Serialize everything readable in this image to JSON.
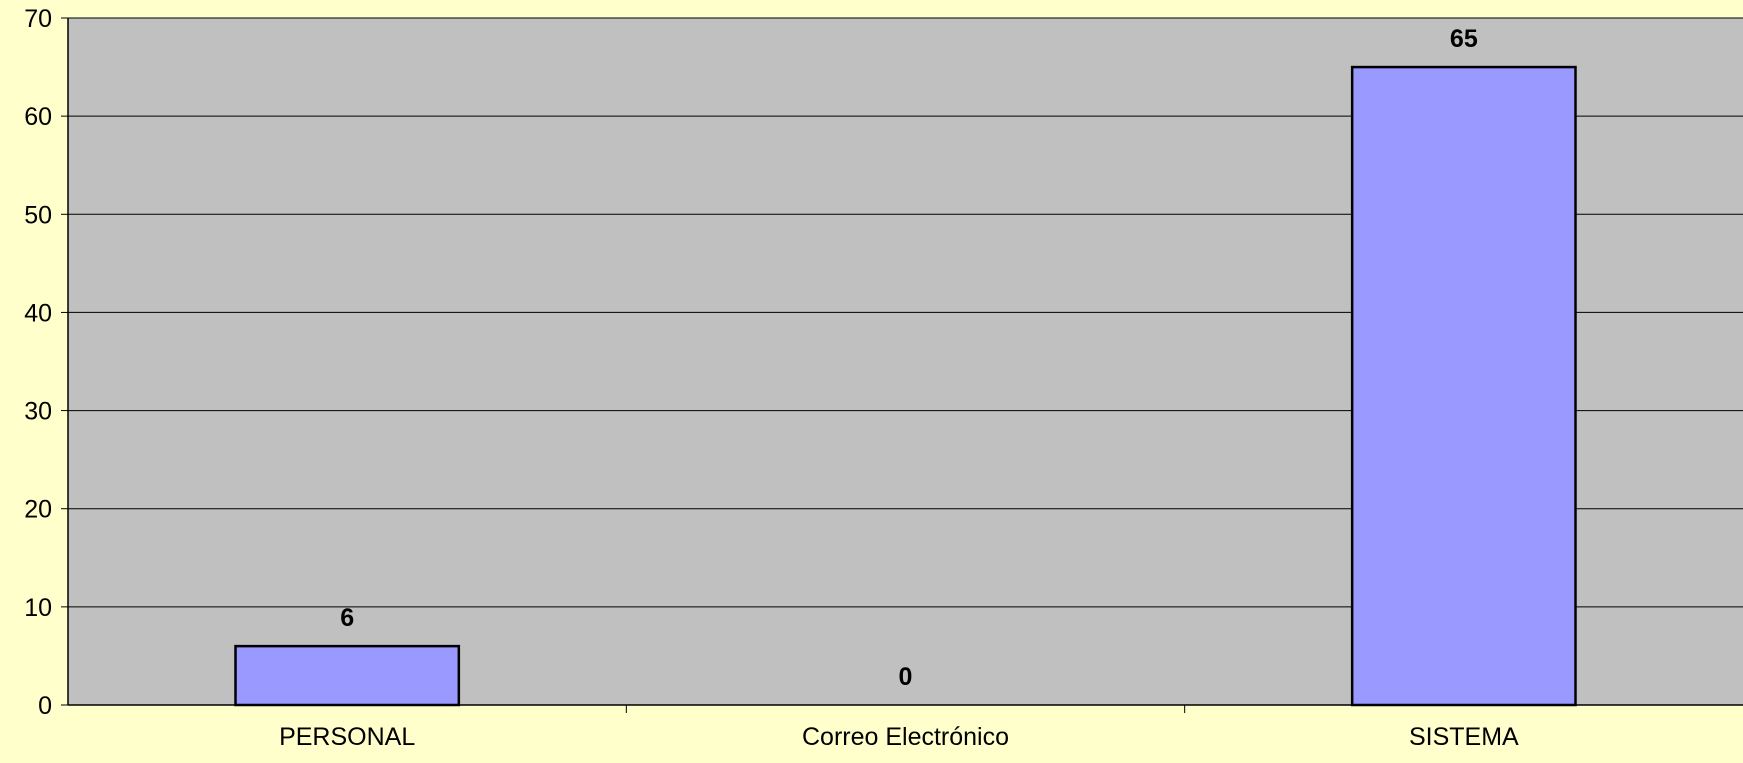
{
  "chart_data": {
    "type": "bar",
    "categories": [
      "PERSONAL",
      "Correo Electrónico",
      "SISTEMA"
    ],
    "values": [
      6,
      0,
      65
    ],
    "data_labels": [
      "6",
      "0",
      "65"
    ],
    "ylim": [
      0,
      70
    ],
    "yticks": [
      0,
      10,
      20,
      30,
      40,
      50,
      60,
      70
    ],
    "grid": true,
    "legend": "none",
    "colors": {
      "background": "#ffffcc",
      "plot_area": "#c0c0c0",
      "bar_fill": "#9999ff",
      "bar_stroke": "#000000",
      "gridline": "#000000"
    }
  }
}
